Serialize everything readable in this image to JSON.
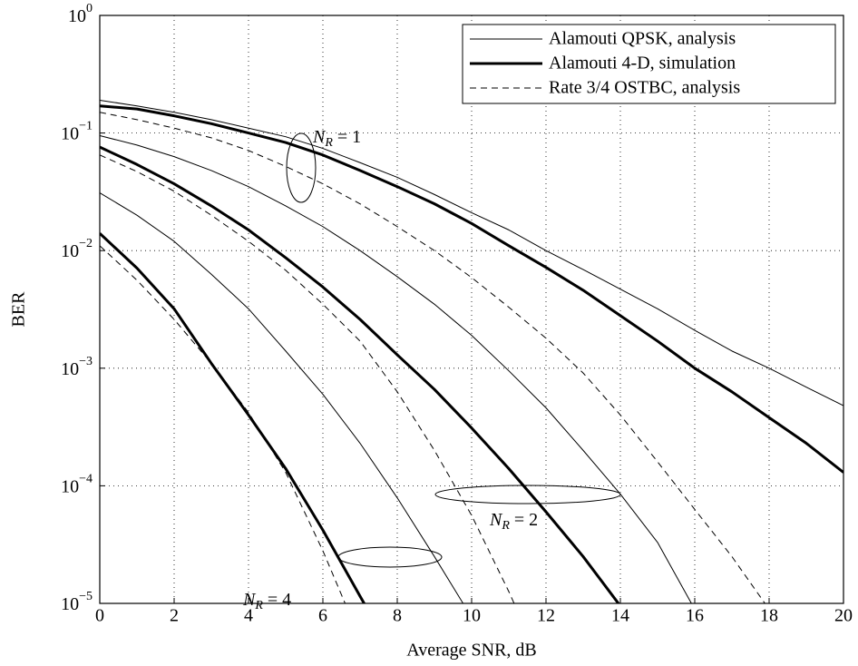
{
  "chart_data": {
    "type": "line",
    "xlabel": "Average SNR, dB",
    "ylabel": "BER",
    "x": [
      0,
      1,
      2,
      3,
      4,
      5,
      6,
      7,
      8,
      9,
      10,
      11,
      12,
      13,
      14,
      15,
      16,
      17,
      18,
      19,
      20
    ],
    "xlim": [
      0,
      20
    ],
    "xticks": [
      0,
      2,
      4,
      6,
      8,
      10,
      12,
      14,
      16,
      18,
      20
    ],
    "yscale": "log",
    "ylim": [
      1e-05,
      1
    ],
    "yticks": [
      {
        "value": 1,
        "label": "10^0"
      },
      {
        "value": 0.1,
        "label": "10^−1"
      },
      {
        "value": 0.01,
        "label": "10^−2"
      },
      {
        "value": 0.001,
        "label": "10^−3"
      },
      {
        "value": 0.0001,
        "label": "10^−4"
      },
      {
        "value": 1e-05,
        "label": "10^−5"
      }
    ],
    "grid": true,
    "legend": "upper right",
    "series": [
      {
        "name": "Alamouti QPSK, analysis",
        "color": "#000000",
        "style": "thin",
        "values": [
          0.19,
          0.17,
          0.15,
          0.13,
          0.11,
          0.093,
          0.074,
          0.056,
          0.042,
          0.03,
          0.021,
          0.015,
          0.01,
          0.0069,
          0.0047,
          0.0032,
          0.0021,
          0.0014,
          0.001,
          0.00069,
          0.00048
        ]
      },
      {
        "name": "Alamouti 4-D, simulation",
        "color": "#000000",
        "style": "thick",
        "values": [
          0.17,
          0.16,
          0.14,
          0.12,
          0.1,
          0.083,
          0.065,
          0.048,
          0.035,
          0.025,
          0.017,
          0.011,
          0.0072,
          0.0046,
          0.0028,
          0.0017,
          0.001,
          0.00063,
          0.00038,
          0.00023,
          0.00013
        ]
      },
      {
        "name": "Rate 3/4 OSTBC, analysis",
        "color": "#000000",
        "style": "dashed",
        "values": [
          0.15,
          0.13,
          0.11,
          0.091,
          0.071,
          0.052,
          0.037,
          0.025,
          0.016,
          0.01,
          0.0059,
          0.0033,
          0.0018,
          0.00091,
          0.0004,
          0.00016,
          6.3e-05,
          2.5e-05,
          8.9e-06,
          null,
          null
        ]
      },
      {
        "color": "#000000",
        "style": "thin",
        "values": [
          0.095,
          0.079,
          0.063,
          0.048,
          0.035,
          0.024,
          0.016,
          0.01,
          0.006,
          0.0035,
          0.0019,
          0.00095,
          0.00046,
          0.0002,
          8.5e-05,
          3.3e-05,
          8.9e-06,
          null,
          null,
          null,
          null
        ]
      },
      {
        "color": "#000000",
        "style": "thick",
        "values": [
          0.076,
          0.054,
          0.037,
          0.024,
          0.015,
          0.0087,
          0.0049,
          0.0026,
          0.0013,
          0.00066,
          0.00031,
          0.00014,
          6e-05,
          2.5e-05,
          9.5e-06,
          null,
          null,
          null,
          null,
          null,
          null
        ]
      },
      {
        "color": "#000000",
        "style": "dashed",
        "values": [
          0.065,
          0.047,
          0.032,
          0.02,
          0.012,
          0.0068,
          0.0035,
          0.0017,
          0.00063,
          0.0002,
          5.6e-05,
          1.26e-05,
          2.5e-06,
          null,
          null,
          null,
          null,
          null,
          null,
          null,
          null
        ]
      },
      {
        "color": "#000000",
        "style": "thin",
        "values": [
          0.031,
          0.02,
          0.012,
          0.0063,
          0.0032,
          0.0014,
          0.0006,
          0.00023,
          7.9e-05,
          2.5e-05,
          7.6e-06,
          null,
          null,
          null,
          null,
          null,
          null,
          null,
          null,
          null,
          null
        ]
      },
      {
        "color": "#000000",
        "style": "thick",
        "values": [
          0.014,
          0.0071,
          0.0032,
          0.0011,
          0.0004,
          0.00014,
          4.2e-05,
          1.15e-05,
          3.2e-06,
          null,
          null,
          null,
          null,
          null,
          null,
          null,
          null,
          null,
          null,
          null,
          null
        ]
      },
      {
        "color": "#000000",
        "style": "dashed",
        "values": [
          0.011,
          0.0056,
          0.0026,
          0.0011,
          0.00042,
          0.00013,
          2.8e-05,
          5e-06,
          null,
          null,
          null,
          null,
          null,
          null,
          null,
          null,
          null,
          null,
          null,
          null,
          null
        ]
      }
    ],
    "annotations": [
      "N_R = 1",
      "N_R = 2",
      "N_R = 4"
    ]
  }
}
